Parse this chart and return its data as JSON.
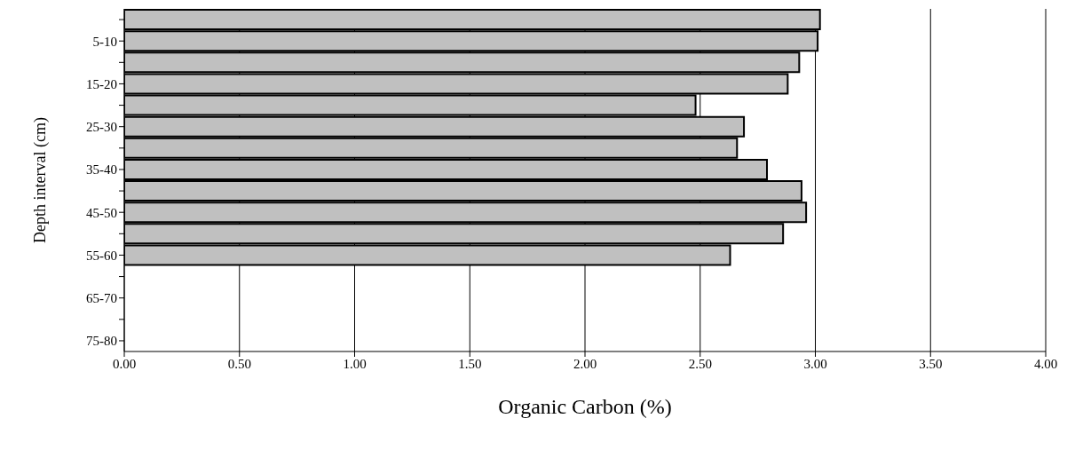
{
  "chart_data": {
    "type": "bar",
    "orientation": "horizontal",
    "xlabel": "Organic Carbon (%)",
    "ylabel": "Depth interval (cm)",
    "categories": [
      null,
      "5-10",
      null,
      "15-20",
      null,
      "25-30",
      null,
      "35-40",
      null,
      "45-50",
      null,
      "55-60",
      null,
      "65-70",
      null,
      "75-80"
    ],
    "values": [
      3.02,
      3.01,
      2.93,
      2.88,
      2.48,
      2.69,
      2.66,
      2.79,
      2.94,
      2.96,
      2.86,
      2.63,
      null,
      null,
      null,
      null
    ],
    "color": "#c0c0c0",
    "xlim": [
      0,
      4
    ],
    "xticks": [
      {
        "value": 0,
        "label": "0.00"
      },
      {
        "value": 0.5,
        "label": "0.50"
      },
      {
        "value": 1,
        "label": "1.00"
      },
      {
        "value": 1.5,
        "label": "1.50"
      },
      {
        "value": 2,
        "label": "2.00"
      },
      {
        "value": 2.5,
        "label": "2.50"
      },
      {
        "value": 3,
        "label": "3.00"
      },
      {
        "value": 3.5,
        "label": "3.50"
      },
      {
        "value": 4,
        "label": "4.00"
      }
    ],
    "grid": "x",
    "legend": false
  }
}
